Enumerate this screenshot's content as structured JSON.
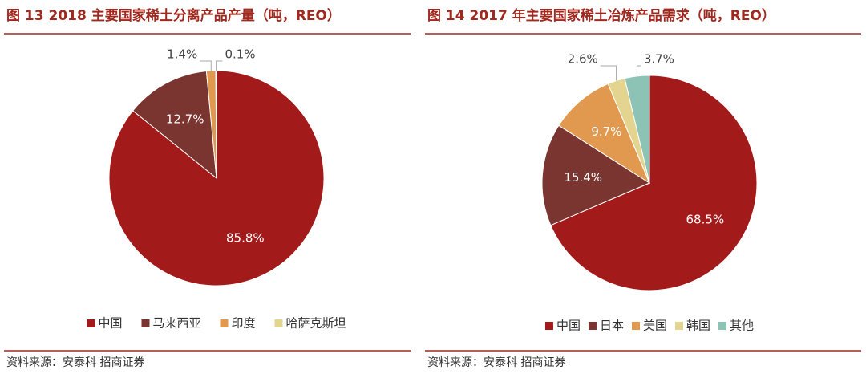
{
  "chart_data": [
    {
      "type": "pie",
      "title": "图 13 2018 主要国家稀土分离产品产量（吨，REO）",
      "source": "资料来源：安泰科 招商证券",
      "categories": [
        "中国",
        "马来西亚",
        "印度",
        "哈萨克斯坦"
      ],
      "values": [
        85.8,
        12.7,
        1.4,
        0.1
      ],
      "value_labels": [
        "85.8%",
        "12.7%",
        "1.4%",
        "0.1%"
      ],
      "colors": [
        "#a31a1a",
        "#7b3530",
        "#e0994f",
        "#e3d58f"
      ]
    },
    {
      "type": "pie",
      "title": "图 14 2017 年主要国家稀土冶炼产品需求（吨，REO）",
      "source": "资料来源：安泰科 招商证券",
      "categories": [
        "中国",
        "日本",
        "美国",
        "韩国",
        "其他"
      ],
      "values": [
        68.5,
        15.4,
        9.7,
        2.6,
        3.7
      ],
      "value_labels": [
        "68.5%",
        "15.4%",
        "9.7%",
        "2.6%",
        "3.7%"
      ],
      "colors": [
        "#a31a1a",
        "#7b3530",
        "#e0994f",
        "#e3d58f",
        "#8cc3b4"
      ]
    }
  ]
}
